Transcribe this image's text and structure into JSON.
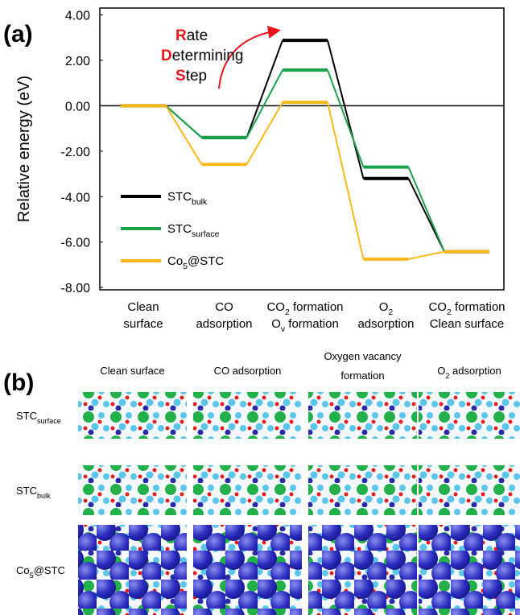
{
  "panel_a": {
    "label": "(a)",
    "chart_data": {
      "type": "energy-levels",
      "y_label": "Relative energy (eV)",
      "categories": [
        [
          [
            "Clean"
          ],
          [
            "surface"
          ]
        ],
        [
          [
            "CO"
          ],
          [
            "adsorption"
          ]
        ],
        [
          [
            "CO",
            {
              "sub": "2"
            },
            " formation"
          ],
          [
            "O",
            {
              "sub": "v"
            },
            " formation"
          ]
        ],
        [
          [
            "O",
            {
              "sub": "2"
            }
          ],
          [
            "adsorption"
          ]
        ],
        [
          [
            "CO",
            {
              "sub": "2"
            },
            " formation"
          ],
          [
            "Clean surface"
          ]
        ]
      ],
      "series": [
        {
          "name": [
            "STC",
            {
              "sub": "bulk"
            }
          ],
          "color": "#000000",
          "values": [
            0,
            -1.4,
            2.88,
            -3.2,
            -6.42
          ]
        },
        {
          "name": [
            "STC",
            {
              "sub": "surface"
            }
          ],
          "color": "#1aa34a",
          "values": [
            0,
            -1.4,
            1.57,
            -2.7,
            -6.42
          ]
        },
        {
          "name": [
            "Co",
            {
              "sub": "5"
            },
            "@STC"
          ],
          "color": "#fbb81b",
          "values": [
            0,
            -2.58,
            0.15,
            -6.75,
            -6.42
          ]
        }
      ],
      "ylim": [
        -8.1,
        4.3
      ],
      "yticks": [
        {
          "value": 4,
          "label": "4.00"
        },
        {
          "value": 2,
          "label": "2.00"
        },
        {
          "value": 0,
          "label": "0.00"
        },
        {
          "value": -2,
          "label": "-2.00"
        },
        {
          "value": -4,
          "label": "-4.00"
        },
        {
          "value": -6,
          "label": "-6.00"
        },
        {
          "value": -8,
          "label": "-8.00"
        }
      ],
      "zero_line": true,
      "legend_loc": "lower left",
      "annotation": {
        "lines": [
          [
            "R",
            "ate"
          ],
          [
            "D",
            "etermining"
          ],
          [
            "S",
            "tep"
          ]
        ],
        "highlight_color": "#e8141c"
      }
    }
  },
  "panel_b": {
    "label": "(b)",
    "columns": [
      [
        [
          "Clean surface"
        ]
      ],
      [
        [
          "CO adsorption"
        ]
      ],
      [
        [
          "Oxygen vacancy"
        ],
        [
          "formation"
        ]
      ],
      [
        [
          "O",
          {
            "sub": "2"
          },
          " adsorption"
        ]
      ]
    ],
    "rows": [
      [
        "STC",
        {
          "sub": "surface"
        }
      ],
      [
        "STC",
        {
          "sub": "bulk"
        }
      ],
      [
        "Co",
        {
          "sub": "5"
        },
        "@STC"
      ]
    ]
  }
}
